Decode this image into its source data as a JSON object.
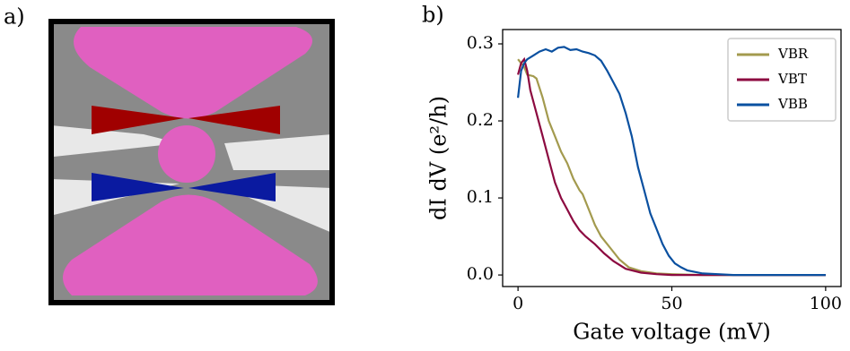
{
  "panel_a": {
    "label": "a)"
  },
  "chart_data": {
    "type": "line",
    "panel_label": "b)",
    "x_label": "Gate voltage (mV)",
    "y_label": "dI dV (e²/h)",
    "xlim": [
      -5,
      105
    ],
    "ylim": [
      -0.015,
      0.3186
    ],
    "xticks": [
      0,
      50,
      100
    ],
    "yticks": [
      {
        "value": 0,
        "label": "0.0"
      },
      0.1,
      0.2,
      0.3
    ],
    "legend": "upper right",
    "series": [
      {
        "name": "VBR",
        "color": "#a39a4e",
        "x": [
          0,
          1,
          2,
          3,
          5,
          6,
          8,
          10,
          12,
          14,
          16,
          18,
          20,
          21,
          23,
          25,
          27,
          30,
          33,
          36,
          40,
          45,
          50,
          60,
          70,
          80,
          90,
          100
        ],
        "values": [
          0.28,
          0.275,
          0.27,
          0.26,
          0.258,
          0.255,
          0.23,
          0.2,
          0.18,
          0.16,
          0.145,
          0.125,
          0.11,
          0.105,
          0.085,
          0.065,
          0.05,
          0.035,
          0.02,
          0.01,
          0.005,
          0.002,
          0.001,
          0,
          0,
          0,
          0,
          0
        ]
      },
      {
        "name": "VBT",
        "color": "#8c0a40",
        "x": [
          0,
          1,
          2,
          3,
          4,
          6,
          8,
          10,
          12,
          14,
          16,
          18,
          20,
          22,
          25,
          28,
          31,
          35,
          40,
          45,
          50,
          60,
          70,
          80,
          90,
          100
        ],
        "values": [
          0.26,
          0.275,
          0.28,
          0.265,
          0.24,
          0.21,
          0.18,
          0.15,
          0.12,
          0.1,
          0.085,
          0.07,
          0.058,
          0.05,
          0.04,
          0.028,
          0.018,
          0.008,
          0.003,
          0.001,
          0,
          0,
          0,
          0,
          0,
          0
        ]
      },
      {
        "name": "VBB",
        "color": "#0a50a0",
        "x": [
          0,
          1,
          2,
          3,
          5,
          7,
          9,
          11,
          13,
          15,
          17,
          19,
          21,
          23,
          25,
          27,
          29,
          31,
          33,
          35,
          37,
          39,
          41,
          43,
          45,
          47,
          49,
          51,
          53,
          55,
          60,
          65,
          70,
          80,
          90,
          100
        ],
        "values": [
          0.23,
          0.265,
          0.275,
          0.28,
          0.285,
          0.29,
          0.293,
          0.29,
          0.295,
          0.296,
          0.292,
          0.293,
          0.29,
          0.288,
          0.285,
          0.278,
          0.265,
          0.25,
          0.235,
          0.21,
          0.18,
          0.14,
          0.11,
          0.08,
          0.06,
          0.04,
          0.025,
          0.015,
          0.01,
          0.006,
          0.002,
          0.001,
          0,
          0,
          0,
          0
        ]
      }
    ]
  }
}
